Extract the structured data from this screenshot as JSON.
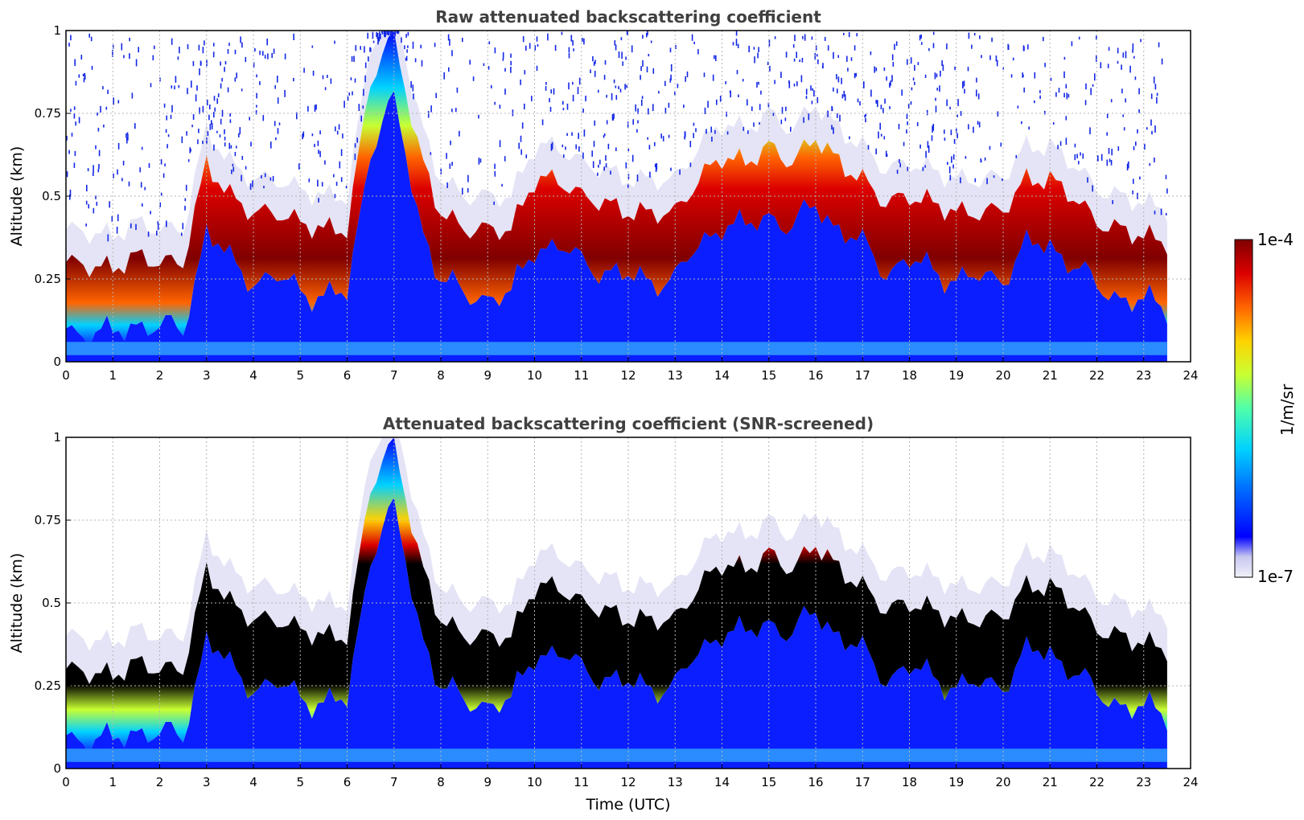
{
  "chart_data": [
    {
      "type": "heatmap",
      "title": "Raw attenuated backscattering coefficient",
      "xlabel": "",
      "ylabel": "Altitude (km)",
      "xlim": [
        0,
        24
      ],
      "ylim": [
        0,
        1
      ],
      "xticks": [
        "0",
        "1",
        "2",
        "3",
        "4",
        "5",
        "6",
        "7",
        "8",
        "9",
        "10",
        "11",
        "12",
        "13",
        "14",
        "15",
        "16",
        "17",
        "18",
        "19",
        "20",
        "21",
        "22",
        "23",
        "24"
      ],
      "yticks": [
        "0",
        "0.25",
        "0.5",
        "0.75",
        "1"
      ],
      "grid": true,
      "data_extent_hours": [
        0,
        23.5
      ],
      "layer_top_km": [
        [
          0,
          0.3
        ],
        [
          1,
          0.28
        ],
        [
          1.5,
          0.32
        ],
        [
          2,
          0.3
        ],
        [
          2.5,
          0.3
        ],
        [
          3,
          0.6
        ],
        [
          3.5,
          0.5
        ],
        [
          4,
          0.45
        ],
        [
          4.5,
          0.45
        ],
        [
          5,
          0.42
        ],
        [
          5.5,
          0.4
        ],
        [
          6,
          0.4
        ],
        [
          6.5,
          0.85
        ],
        [
          7,
          1.0
        ],
        [
          7.5,
          0.65
        ],
        [
          8,
          0.45
        ],
        [
          8.5,
          0.4
        ],
        [
          9,
          0.4
        ],
        [
          9.5,
          0.4
        ],
        [
          10,
          0.55
        ],
        [
          10.5,
          0.55
        ],
        [
          11,
          0.5
        ],
        [
          11.5,
          0.48
        ],
        [
          12,
          0.45
        ],
        [
          12.5,
          0.45
        ],
        [
          13,
          0.45
        ],
        [
          13.5,
          0.55
        ],
        [
          14,
          0.62
        ],
        [
          14.5,
          0.6
        ],
        [
          15,
          0.65
        ],
        [
          15.5,
          0.6
        ],
        [
          16,
          0.68
        ],
        [
          16.5,
          0.6
        ],
        [
          17,
          0.55
        ],
        [
          17.5,
          0.48
        ],
        [
          18,
          0.5
        ],
        [
          18.5,
          0.48
        ],
        [
          19,
          0.45
        ],
        [
          19.5,
          0.45
        ],
        [
          20,
          0.46
        ],
        [
          20.5,
          0.55
        ],
        [
          21,
          0.55
        ],
        [
          21.5,
          0.5
        ],
        [
          22,
          0.42
        ],
        [
          22.5,
          0.4
        ],
        [
          23,
          0.38
        ],
        [
          23.5,
          0.36
        ]
      ]
    },
    {
      "type": "heatmap",
      "title": "Attenuated backscattering coefficient (SNR-screened)",
      "xlabel": "Time (UTC)",
      "ylabel": "Altitude (km)",
      "xlim": [
        0,
        24
      ],
      "ylim": [
        0,
        1
      ],
      "xticks": [
        "0",
        "1",
        "2",
        "3",
        "4",
        "5",
        "6",
        "7",
        "8",
        "9",
        "10",
        "11",
        "12",
        "13",
        "14",
        "15",
        "16",
        "17",
        "18",
        "19",
        "20",
        "21",
        "22",
        "23",
        "24"
      ],
      "yticks": [
        "0",
        "0.25",
        "0.5",
        "0.75",
        "1"
      ],
      "grid": true,
      "data_extent_hours": [
        0,
        23.5
      ]
    }
  ],
  "colorbar": {
    "max_label": "1e-4",
    "min_label": "1e-7",
    "unit_label": "1/m/sr",
    "colors": [
      "#f0f0fa",
      "#c8c8f0",
      "#0000ff",
      "#0064ff",
      "#00d2ff",
      "#50ffaa",
      "#c8ff32",
      "#ffd200",
      "#ff6400",
      "#dc0000",
      "#800000"
    ]
  }
}
